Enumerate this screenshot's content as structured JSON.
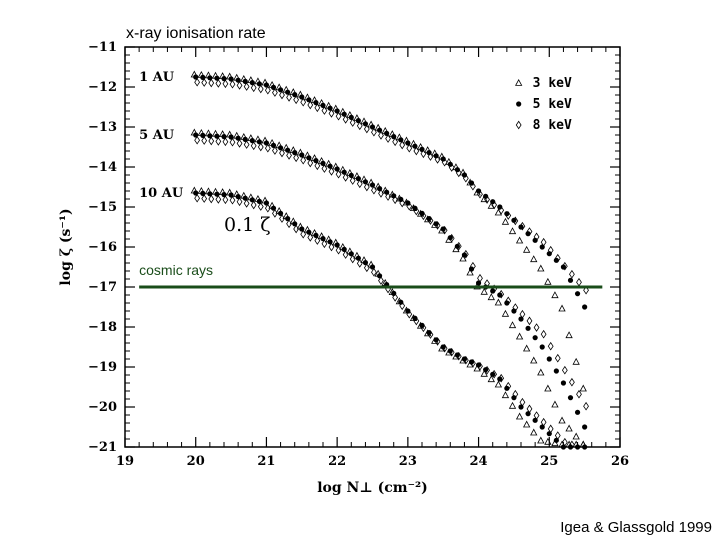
{
  "overlay_title": "x-ray ionisation rate",
  "credit": "Igea & Glassgold 1999",
  "chart_data": {
    "type": "scatter",
    "title": "x-ray ionisation rate",
    "xlabel": "log N⊥ (cm⁻²)",
    "ylabel": "log ζ (s⁻¹)",
    "xlim": [
      19,
      26
    ],
    "ylim": [
      -21,
      -11
    ],
    "xticks": [
      19,
      20,
      21,
      22,
      23,
      24,
      25,
      26
    ],
    "yticks": [
      -11,
      -12,
      -13,
      -14,
      -15,
      -16,
      -17,
      -18,
      -19,
      -20,
      -21
    ],
    "xtick_labels": [
      "19",
      "20",
      "21",
      "22",
      "23",
      "24",
      "25",
      "26"
    ],
    "ytick_labels": [
      "−11",
      "−12",
      "−13",
      "−14",
      "−15",
      "−16",
      "−17",
      "−18",
      "−19",
      "−20",
      "−21"
    ],
    "legend": {
      "position": "top-right",
      "entries": [
        {
          "name": "3 keV",
          "marker": "triangle"
        },
        {
          "name": "5 keV",
          "marker": "dot"
        },
        {
          "name": "8 keV",
          "marker": "diamond"
        }
      ]
    },
    "groups": [
      {
        "label": "1 AU",
        "x": [
          20.0,
          20.5,
          21.0,
          21.5,
          22.0,
          22.5,
          23.0,
          23.5,
          23.8,
          24.0,
          24.3,
          24.6,
          24.9,
          25.2,
          25.5
        ],
        "y5": [
          -11.75,
          -11.8,
          -11.95,
          -12.25,
          -12.6,
          -13.0,
          -13.4,
          -13.8,
          -14.2,
          -14.6,
          -15.0,
          -15.5,
          -16.0,
          -16.5,
          -17.5
        ],
        "y3": [
          -11.75,
          -11.8,
          -11.95,
          -12.25,
          -12.6,
          -13.0,
          -13.4,
          -13.8,
          -14.2,
          -14.7,
          -15.2,
          -15.9,
          -16.6,
          -17.6,
          -19.6
        ],
        "y8": [
          -11.8,
          -11.85,
          -12.0,
          -12.3,
          -12.65,
          -13.05,
          -13.45,
          -13.8,
          -14.2,
          -14.6,
          -15.0,
          -15.4,
          -15.8,
          -16.4,
          -17.0
        ]
      },
      {
        "label": "5 AU",
        "x": [
          20.0,
          20.5,
          21.0,
          21.5,
          22.0,
          22.5,
          23.0,
          23.5,
          23.8,
          24.0,
          24.3,
          24.6,
          24.9,
          25.2,
          25.5
        ],
        "y5": [
          -13.2,
          -13.25,
          -13.4,
          -13.7,
          -14.05,
          -14.45,
          -14.9,
          -15.55,
          -16.2,
          -16.9,
          -17.2,
          -17.8,
          -18.5,
          -19.4,
          -20.5
        ],
        "y3": [
          -13.2,
          -13.25,
          -13.4,
          -13.7,
          -14.05,
          -14.45,
          -14.95,
          -15.65,
          -16.35,
          -17.05,
          -17.45,
          -18.3,
          -19.2,
          -20.4,
          -21.0
        ],
        "y8": [
          -13.25,
          -13.3,
          -13.45,
          -13.75,
          -14.1,
          -14.5,
          -14.9,
          -15.5,
          -16.1,
          -16.7,
          -17.1,
          -17.6,
          -18.1,
          -19.0,
          -19.9
        ]
      },
      {
        "label": "10 AU",
        "x": [
          20.0,
          20.5,
          21.0,
          21.5,
          22.0,
          22.5,
          23.0,
          23.5,
          23.8,
          24.0,
          24.3,
          24.6,
          24.9,
          25.2,
          25.5
        ],
        "y5": [
          -14.65,
          -14.7,
          -14.9,
          -15.55,
          -15.95,
          -16.5,
          -17.6,
          -18.5,
          -18.8,
          -18.95,
          -19.3,
          -20.0,
          -20.5,
          -21.0,
          -21.0
        ],
        "y3": [
          -14.65,
          -14.7,
          -14.9,
          -15.55,
          -15.95,
          -16.5,
          -17.65,
          -18.6,
          -18.9,
          -19.1,
          -19.5,
          -20.3,
          -20.9,
          -21.0,
          -21.0
        ],
        "y8": [
          -14.7,
          -14.75,
          -14.95,
          -15.6,
          -16.0,
          -16.55,
          -17.6,
          -18.45,
          -18.75,
          -18.9,
          -19.2,
          -19.8,
          -20.3,
          -20.8,
          -21.0
        ]
      }
    ],
    "annotations": [
      {
        "text": "0.1 ζ",
        "x": 20.4,
        "y": -15.6
      },
      {
        "text": "cosmic rays",
        "x": 19.2,
        "y": -16.7
      }
    ],
    "hlines": [
      {
        "y": -17,
        "xmin": 19.2,
        "xmax": 25.75,
        "color": "#1a4d1a",
        "label": "cosmic rays"
      }
    ]
  }
}
